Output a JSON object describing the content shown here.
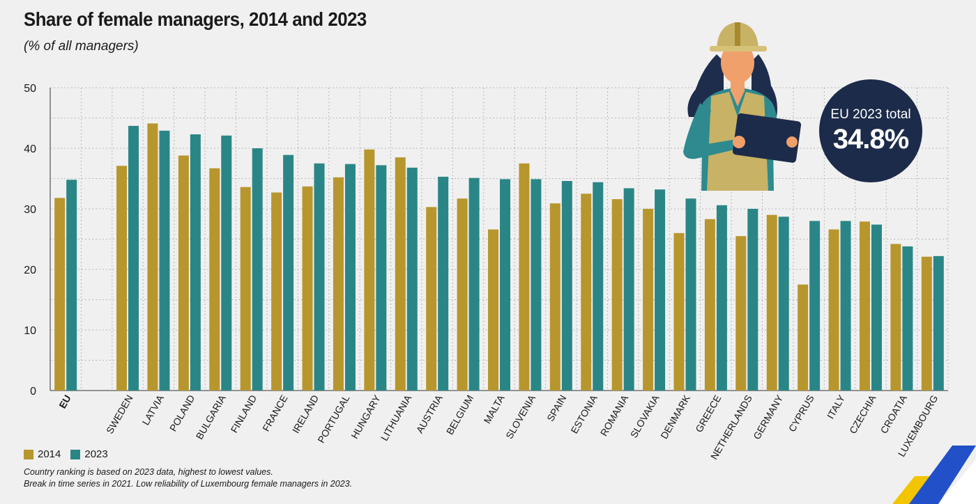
{
  "header": {
    "title": "Share of female managers, 2014 and 2023",
    "subtitle": "(% of all managers)"
  },
  "legend": {
    "items": [
      {
        "label": "2014",
        "color": "#b8962e"
      },
      {
        "label": "2023",
        "color": "#2a8686"
      }
    ]
  },
  "notes": {
    "line1": "Country ranking is based on 2023 data, highest to lowest values.",
    "line2": "Break in time series in 2021. Low reliability of Luxembourg female managers in 2023."
  },
  "badge": {
    "label": "EU 2023 total",
    "value": "34.8%"
  },
  "chart_data": {
    "type": "bar",
    "title": "Share of female managers, 2014 and 2023",
    "ylabel": "% of all managers",
    "xlabel": "",
    "ylim": [
      0,
      50
    ],
    "yticks": [
      0,
      10,
      20,
      30,
      40,
      50
    ],
    "grid": true,
    "legend_position": "bottom-left",
    "categories": [
      "EU",
      "SWEDEN",
      "LATVIA",
      "POLAND",
      "BULGARIA",
      "FINLAND",
      "FRANCE",
      "IRELAND",
      "PORTUGAL",
      "HUNGARY",
      "LITHUANIA",
      "AUSTRIA",
      "BELGIUM",
      "MALTA",
      "SLOVENIA",
      "SPAIN",
      "ESTONIA",
      "ROMANIA",
      "SLOVAKIA",
      "DENMARK",
      "GREECE",
      "NETHERLANDS",
      "GERMANY",
      "CYPRUS",
      "ITALY",
      "CZECHIA",
      "CROATIA",
      "LUXEMBOURG"
    ],
    "series": [
      {
        "name": "2014",
        "color": "#b8962e",
        "values": [
          31.8,
          37.1,
          44.1,
          38.8,
          36.7,
          33.6,
          32.7,
          33.7,
          35.2,
          39.8,
          38.5,
          30.3,
          31.7,
          26.6,
          37.5,
          30.9,
          32.5,
          31.6,
          30.0,
          26.0,
          28.3,
          25.5,
          29.0,
          17.5,
          26.6,
          27.9,
          24.2,
          22.1
        ]
      },
      {
        "name": "2023",
        "color": "#2a8686",
        "values": [
          34.8,
          43.7,
          42.9,
          42.3,
          42.1,
          40.0,
          38.9,
          37.5,
          37.4,
          37.2,
          36.8,
          35.3,
          35.1,
          34.9,
          34.9,
          34.6,
          34.4,
          33.4,
          33.2,
          31.7,
          30.6,
          30.0,
          28.7,
          28.0,
          28.0,
          27.4,
          23.8,
          22.2
        ]
      }
    ]
  }
}
